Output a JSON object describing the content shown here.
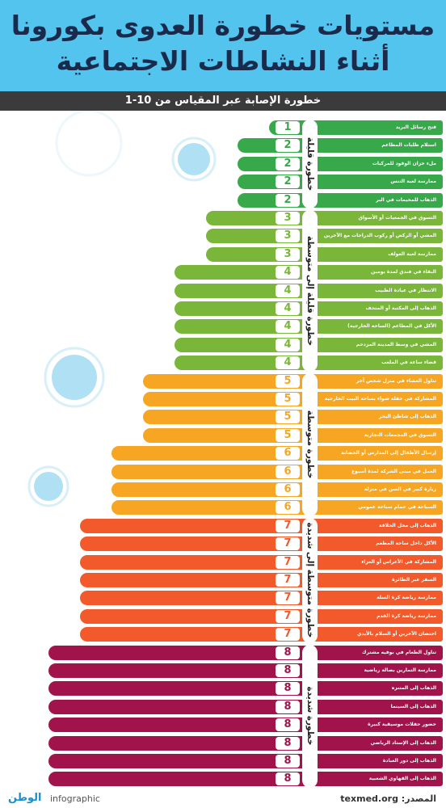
{
  "header": {
    "title_lines": [
      "مستويات خطورة العدوى بكورونا",
      "أثناء النشاطات الاجتماعية"
    ]
  },
  "chart_data": {
    "type": "bar",
    "subtitle": "خطورة الإصابة عبر المقياس من 10-1",
    "series": [
      {
        "name": "خطورة قليلة",
        "color": "#38a94a",
        "categories": [
          "فتح رسائل البريد",
          "استلام طلبات المطاعم",
          "ملء خزان الوقود للمركبات",
          "ممارسة لعبة التنس",
          "الذهاب للمخيمات في البر"
        ],
        "values": [
          1,
          2,
          2,
          2,
          2
        ]
      },
      {
        "name": "خطورة قليلة إلى متوسطة",
        "color": "#7ab63a",
        "categories": [
          "التسوق في الجمعيات أو الأسواق",
          "المشي أو الركض أو ركوب الدراجات مع الآخرين",
          "ممارسة لعبة الغولف",
          "البقاء في فندق لمدة يومين",
          "الانتظار في عيادة الطبيب",
          "الذهاب إلى المكتبة أو المتحف",
          "الأكل في المطاعم (الساحة الخارجية)",
          "المشي في وسط المدينة المزدحم",
          "قضاء ساعة في الملعب"
        ],
        "values": [
          3,
          3,
          3,
          4,
          4,
          4,
          4,
          4,
          4
        ]
      },
      {
        "name": "خطورة متوسطة",
        "color": "#f6a623",
        "categories": [
          "تناول العشاء في منزل شخص آخر",
          "المشاركة في حفلة شواء بساحة البيت الخارجية",
          "الذهاب إلى شاطئ البحر",
          "التسوق في المجمعات التجارية",
          "إرسال الأطفال إلى المدارس أو الحضانة",
          "العمل في مبنى الشركة لمدة أسبوع",
          "زيارة كبير في السن في منزله",
          "السباحة في حمام سباحة عمومي"
        ],
        "values": [
          5,
          5,
          5,
          5,
          6,
          6,
          6,
          6
        ]
      },
      {
        "name": "خطورة متوسطة إلى شديدة",
        "color": "#f25a2b",
        "categories": [
          "الذهاب إلى محل الحلاقة",
          "الأكل داخل ساحة المطعم",
          "المشاركة في الأعراس أو العزاء",
          "السفر عبر الطائرة",
          "ممارسة رياضة كرة السلة",
          "ممارسة رياضة كرة القدم",
          "احتضان الآخرين أو السلام بالأيدي"
        ],
        "values": [
          7,
          7,
          7,
          7,
          7,
          7,
          7
        ]
      },
      {
        "name": "خطورة شديدة",
        "color": "#a1144b",
        "categories": [
          "تناول الطعام في بوفيه مشترك",
          "ممارسة التمارين بصالة رياضية",
          "الذهاب إلى المتنزه",
          "الذهاب إلى السينما",
          "حضور حفلات موسيقية كبيرة",
          "الذهاب إلى الإستاد الرياضي",
          "الذهاب إلى دور العبادة",
          "الذهاب إلى القهاوي الشعبية"
        ],
        "values": [
          8,
          8,
          8,
          8,
          8,
          8,
          8,
          8
        ]
      }
    ]
  },
  "footer": {
    "source_label": "المصدر:",
    "source": "texmed.org",
    "tag": "infographic",
    "brand": "الوطن"
  }
}
